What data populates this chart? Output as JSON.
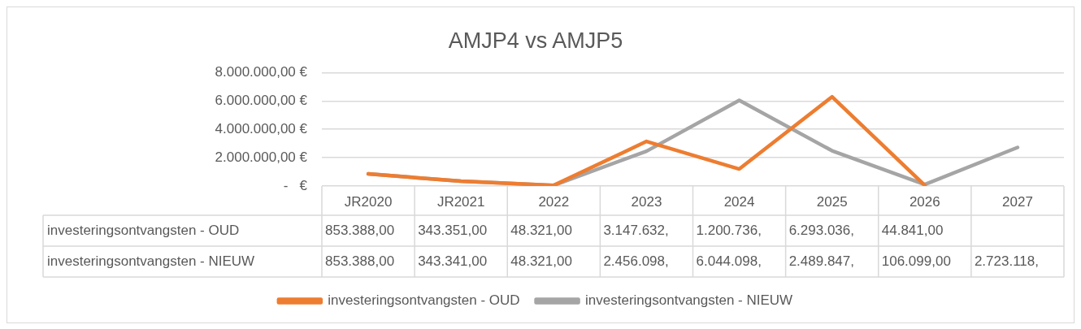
{
  "chart_data": {
    "type": "line",
    "title": "AMJP4 vs AMJP5",
    "categories": [
      "JR2020",
      "JR2021",
      "2022",
      "2023",
      "2024",
      "2025",
      "2026",
      "2027"
    ],
    "series": [
      {
        "name": "investeringsontvangsten - OUD",
        "color": "#ed7d31",
        "values": [
          853388,
          343351,
          48321,
          3147632,
          1200736,
          6293036,
          44841,
          null
        ],
        "value_labels": [
          "853.388,00",
          "343.351,00",
          "48.321,00",
          "3.147.632,",
          "1.200.736,",
          "6.293.036,",
          "44.841,00",
          null
        ]
      },
      {
        "name": "investeringsontvangsten - NIEUW",
        "color": "#a5a5a5",
        "values": [
          853388,
          343341,
          48321,
          2456098,
          6044098,
          2489847,
          106099,
          2723118
        ],
        "value_labels": [
          "853.388,00",
          "343.341,00",
          "48.321,00",
          "2.456.098,",
          "6.044.098,",
          "2.489.847,",
          "106.099,00",
          "2.723.118,"
        ]
      }
    ],
    "ylim": [
      0,
      8000000
    ],
    "yticks": [
      {
        "value": 0,
        "label": "-   €"
      },
      {
        "value": 2000000,
        "label": "2.000.000,00 €"
      },
      {
        "value": 4000000,
        "label": "4.000.000,00 €"
      },
      {
        "value": 6000000,
        "label": "6.000.000,00 €"
      },
      {
        "value": 8000000,
        "label": "8.000.000,00 €"
      }
    ],
    "grid": "y",
    "legend": "bottom",
    "marker": "none",
    "line_style": "solid"
  }
}
